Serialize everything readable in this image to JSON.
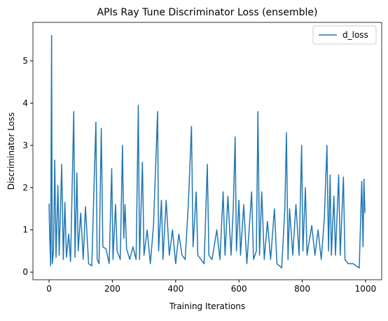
{
  "chart_data": {
    "type": "line",
    "title": "APIs Ray Tune Discriminator Loss (ensemble)",
    "x_label": "Training Iterations",
    "y_label": "Discriminator Loss",
    "xlim": [
      -51,
      1051
    ],
    "ylim": [
      -0.18,
      5.91
    ],
    "xticks": [
      0,
      200,
      400,
      600,
      800,
      1000
    ],
    "yticks": [
      0,
      1,
      2,
      3,
      4,
      5
    ],
    "legend": "upper right",
    "series": [
      {
        "name": "d_loss",
        "color": "#1f77b4",
        "x": [
          0,
          2,
          5,
          8,
          10,
          14,
          18,
          22,
          28,
          32,
          40,
          45,
          50,
          55,
          62,
          68,
          78,
          82,
          88,
          92,
          100,
          108,
          115,
          125,
          135,
          148,
          152,
          158,
          165,
          170,
          180,
          190,
          198,
          202,
          210,
          215,
          225,
          232,
          236,
          240,
          245,
          255,
          265,
          275,
          282,
          286,
          295,
          300,
          310,
          320,
          330,
          343,
          346,
          355,
          360,
          370,
          380,
          390,
          400,
          410,
          420,
          430,
          440,
          450,
          455,
          465,
          470,
          480,
          490,
          500,
          505,
          515,
          530,
          540,
          550,
          556,
          565,
          575,
          582,
          588,
          592,
          600,
          605,
          615,
          625,
          640,
          646,
          655,
          660,
          665,
          672,
          680,
          690,
          700,
          712,
          720,
          735,
          745,
          750,
          755,
          760,
          770,
          780,
          790,
          798,
          802,
          810,
          815,
          830,
          840,
          850,
          860,
          870,
          878,
          883,
          888,
          892,
          900,
          905,
          915,
          920,
          930,
          935,
          945,
          960,
          970,
          980,
          988,
          992,
          995,
          998
        ],
        "values": [
          1.62,
          0.85,
          0.15,
          5.6,
          0.2,
          0.5,
          2.65,
          0.35,
          2.05,
          0.4,
          2.55,
          0.3,
          1.65,
          0.35,
          0.9,
          0.25,
          3.8,
          0.35,
          2.35,
          0.5,
          1.4,
          0.3,
          1.55,
          0.2,
          0.15,
          3.55,
          0.3,
          0.2,
          3.4,
          0.6,
          0.55,
          0.2,
          2.45,
          0.3,
          1.6,
          0.5,
          0.3,
          3.0,
          0.8,
          1.6,
          0.55,
          0.3,
          0.6,
          0.3,
          3.95,
          0.3,
          2.6,
          0.4,
          1.0,
          0.2,
          1.1,
          3.8,
          0.5,
          1.7,
          0.3,
          1.7,
          0.4,
          1.0,
          0.2,
          0.9,
          0.4,
          0.3,
          1.6,
          3.45,
          0.6,
          1.9,
          0.4,
          0.3,
          0.2,
          2.55,
          0.4,
          0.3,
          1.0,
          0.3,
          1.9,
          0.4,
          1.8,
          0.4,
          1.5,
          3.2,
          0.5,
          1.7,
          0.4,
          1.6,
          0.2,
          1.9,
          0.3,
          0.5,
          3.8,
          0.4,
          1.9,
          0.3,
          1.2,
          0.3,
          1.5,
          0.2,
          0.1,
          1.5,
          3.3,
          0.3,
          1.5,
          0.4,
          1.6,
          0.4,
          3.0,
          0.5,
          2.0,
          0.4,
          1.1,
          0.4,
          1.0,
          0.3,
          1.3,
          3.0,
          0.5,
          2.3,
          0.4,
          1.8,
          0.4,
          2.3,
          0.4,
          2.25,
          0.3,
          0.2,
          0.2,
          0.15,
          0.1,
          2.15,
          0.6,
          2.2,
          1.4
        ]
      }
    ]
  }
}
